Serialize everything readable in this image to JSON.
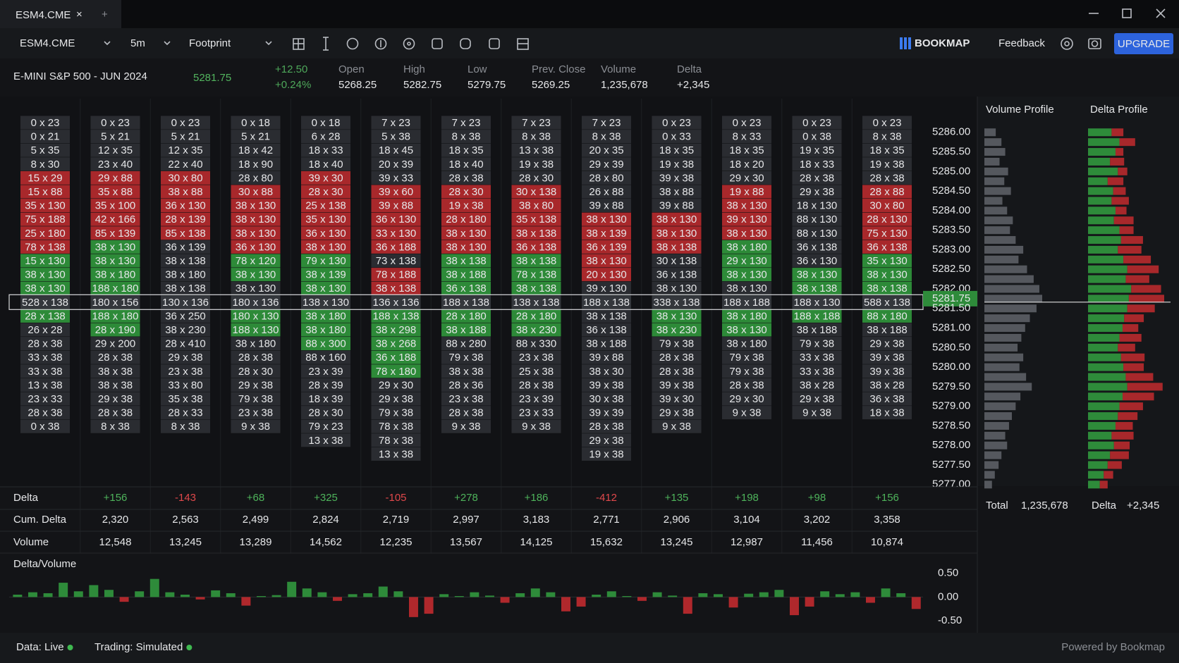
{
  "tab": {
    "title": "ESM4.CME",
    "close": "×",
    "add": "+"
  },
  "toolbar": {
    "symbol": "ESM4.CME",
    "timeframe": "5m",
    "chart_type": "Footprint",
    "brand": "BOOKMAP",
    "feedback": "Feedback",
    "upgrade": "UPGRADE"
  },
  "quote": {
    "name": "E-MINI S&P 500 - JUN 2024",
    "last": "5281.75",
    "change": "+12.50",
    "change_pct": "+0.24%",
    "stats": [
      {
        "label": "Open",
        "value": "5268.25"
      },
      {
        "label": "High",
        "value": "5282.75"
      },
      {
        "label": "Low",
        "value": "5279.75"
      },
      {
        "label": "Prev. Close",
        "value": "5269.25"
      },
      {
        "label": "Volume",
        "value": "1,235,678"
      },
      {
        "label": "Delta",
        "value": "+2,345"
      }
    ]
  },
  "footprint": {
    "current_price": "5281.75",
    "tone_colors": {
      "n": "#2a2c31",
      "r": "#a8282b",
      "g": "#2d8a38",
      "w": "#34373c"
    },
    "columns": [
      {
        "tones": "nnnnrrrrrrgggwgnnnnnnnn",
        "cells": [
          "0 x 23",
          "0 x 21",
          "5 x 35",
          "8 x 30",
          "15 x 29",
          "15 x 88",
          "35 x 130",
          "75 x 188",
          "25 x 180",
          "78 x 138",
          "15 x 130",
          "38 x 130",
          "38 x 130",
          "528 x 138",
          "28 x 138",
          "26 x 28",
          "28 x 38",
          "33 x 38",
          "33 x 38",
          "13 x 38",
          "23 x 33",
          "28 x 38",
          "0 x 38"
        ]
      },
      {
        "tones": "nnnnrrrrrggggwggnnnnnnn",
        "cells": [
          "0 x 23",
          "5 x 21",
          "12 x 35",
          "23 x 40",
          "29 x 88",
          "35 x 88",
          "35 x 100",
          "42 x 166",
          "85 x 139",
          "38 x 130",
          "38 x 130",
          "38 x 180",
          "188 x 180",
          "180 x 156",
          "188 x 180",
          "28 x 190",
          "29 x 200",
          "28 x 38",
          "38 x 38",
          "38 x 38",
          "29 x 38",
          "28 x 38",
          "8 x 38"
        ]
      },
      {
        "tones": "nnnnrrrrrnnnnwnnnnnnnnn",
        "cells": [
          "0 x 23",
          "5 x 21",
          "12 x 35",
          "22 x 40",
          "30 x 80",
          "38 x 88",
          "36 x 130",
          "28 x 139",
          "85 x 138",
          "36 x 139",
          "38 x 138",
          "38 x 180",
          "38 x 138",
          "130 x 136",
          "36 x 250",
          "38 x 230",
          "28 x 410",
          "29 x 38",
          "23 x 38",
          "33 x 80",
          "35 x 38",
          "28 x 33",
          "8 x 38"
        ]
      },
      {
        "tones": "nnnnnrrrrrggnwggnnnnnnn",
        "cells": [
          "0 x 18",
          "5 x 21",
          "18 x 42",
          "18 x 90",
          "28 x 80",
          "30 x 88",
          "38 x 130",
          "38 x 130",
          "38 x 130",
          "36 x 130",
          "78 x 120",
          "38 x 130",
          "38 x 130",
          "180 x 136",
          "180 x 130",
          "188 x 130",
          "38 x 180",
          "28 x 38",
          "28 x 30",
          "29 x 38",
          "79 x 38",
          "23 x 38",
          "9 x 38"
        ]
      },
      {
        "tones": "nnnnrrrrrrgggwgggnnnnnnn",
        "cells": [
          "0 x 18",
          "6 x 28",
          "18 x 33",
          "18 x 40",
          "39 x 30",
          "28 x 30",
          "25 x 138",
          "35 x 130",
          "36 x 130",
          "38 x 130",
          "79 x 130",
          "38 x 139",
          "38 x 130",
          "138 x 130",
          "38 x 180",
          "38 x 180",
          "88 x 300",
          "88 x 160",
          "23 x 39",
          "28 x 39",
          "18 x 39",
          "28 x 30",
          "79 x 23",
          "13 x 38"
        ]
      },
      {
        "tones": "nnnnnrrrrrnrrwgggggnnnnnn",
        "cells": [
          "7 x 23",
          "5 x 38",
          "18 x 45",
          "20 x 39",
          "39 x 33",
          "39 x 60",
          "39 x 88",
          "36 x 130",
          "33 x 130",
          "36 x 188",
          "73 x 138",
          "78 x 188",
          "38 x 138",
          "136 x 136",
          "188 x 138",
          "38 x 298",
          "38 x 268",
          "36 x 188",
          "78 x 180",
          "29 x 30",
          "29 x 38",
          "79 x 38",
          "78 x 38",
          "78 x 38",
          "13 x 38"
        ]
      },
      {
        "tones": "nnnnnrrrrrgggwggnnnnnnn",
        "cells": [
          "7 x 23",
          "8 x 38",
          "18 x 35",
          "18 x 40",
          "28 x 38",
          "28 x 30",
          "19 x 38",
          "28 x 180",
          "38 x 130",
          "38 x 130",
          "38 x 138",
          "38 x 188",
          "36 x 138",
          "188 x 138",
          "28 x 180",
          "38 x 188",
          "88 x 280",
          "79 x 38",
          "38 x 38",
          "28 x 36",
          "23 x 38",
          "28 x 38",
          "9 x 38"
        ]
      },
      {
        "tones": "nnnnnrrrrrgggwggnnnnnnn",
        "cells": [
          "7 x 23",
          "8 x 38",
          "13 x 38",
          "19 x 38",
          "28 x 30",
          "30 x 138",
          "38 x 80",
          "35 x 138",
          "38 x 138",
          "36 x 138",
          "38 x 138",
          "78 x 138",
          "38 x 138",
          "138 x 138",
          "28 x 180",
          "38 x 230",
          "88 x 330",
          "23 x 38",
          "25 x 38",
          "28 x 38",
          "23 x 39",
          "23 x 33",
          "9 x 38"
        ]
      },
      {
        "tones": "nnnnnnnrrrrrnwnnnnnnnnnnn",
        "cells": [
          "7 x 23",
          "8 x 38",
          "20 x 35",
          "29 x 39",
          "28 x 80",
          "26 x 88",
          "39 x 88",
          "38 x 130",
          "38 x 139",
          "36 x 139",
          "38 x 130",
          "20 x 130",
          "39 x 130",
          "188 x 138",
          "38 x 138",
          "36 x 138",
          "38 x 188",
          "39 x 88",
          "38 x 30",
          "39 x 38",
          "30 x 38",
          "39 x 39",
          "28 x 38",
          "29 x 38",
          "19 x 38"
        ]
      },
      {
        "tones": "nnnnnnnrrrnnnwggnnnnnnn",
        "cells": [
          "0 x 23",
          "0 x 33",
          "18 x 35",
          "19 x 38",
          "39 x 38",
          "38 x 88",
          "39 x 88",
          "38 x 130",
          "38 x 130",
          "38 x 138",
          "30 x 138",
          "36 x 138",
          "38 x 130",
          "338 x 138",
          "38 x 130",
          "38 x 230",
          "79 x 38",
          "28 x 38",
          "28 x 38",
          "39 x 38",
          "39 x 30",
          "29 x 38",
          "9 x 38"
        ]
      },
      {
        "tones": "nnnnnrrrrgggnwggnnnnnn",
        "cells": [
          "0 x 23",
          "8 x 33",
          "18 x 35",
          "18 x 20",
          "29 x 30",
          "19 x 88",
          "38 x 130",
          "39 x 130",
          "38 x 130",
          "38 x 180",
          "29 x 130",
          "38 x 130",
          "38 x 130",
          "188 x 188",
          "38 x 180",
          "38 x 130",
          "38 x 180",
          "79 x 38",
          "79 x 38",
          "28 x 38",
          "29 x 30",
          "9 x 38"
        ]
      },
      {
        "tones": "nnnnnnnnnnnggwgnnnnnnn",
        "cells": [
          "0 x 23",
          "0 x 38",
          "19 x 35",
          "18 x 33",
          "28 x 38",
          "29 x 38",
          "18 x 130",
          "88 x 130",
          "88 x 130",
          "36 x 138",
          "36 x 130",
          "38 x 130",
          "38 x 138",
          "188 x 130",
          "188 x 188",
          "38 x 188",
          "79 x 38",
          "33 x 38",
          "33 x 38",
          "38 x 28",
          "29 x 38",
          "9 x 38"
        ]
      },
      {
        "tones": "nnnnnrrrrrgggwgnnnnnnn",
        "cells": [
          "0 x 23",
          "8 x 38",
          "18 x 35",
          "19 x 38",
          "28 x 38",
          "28 x 88",
          "30 x 80",
          "28 x 130",
          "75 x 130",
          "36 x 138",
          "35 x 130",
          "38 x 130",
          "38 x 138",
          "588 x 138",
          "88 x 180",
          "38 x 188",
          "29 x 38",
          "39 x 38",
          "39 x 38",
          "38 x 28",
          "36 x 38",
          "18 x 38"
        ]
      }
    ]
  },
  "summary": {
    "rows": [
      {
        "label": "Delta",
        "values": [
          "+156",
          "-143",
          "+68",
          "+325",
          "-105",
          "+278",
          "+186",
          "-412",
          "+135",
          "+198",
          "+98",
          "+156"
        ]
      },
      {
        "label": "Cum. Delta",
        "values": [
          "2,320",
          "2,563",
          "2,499",
          "2,824",
          "2,719",
          "2,997",
          "3,183",
          "2,771",
          "2,906",
          "3,104",
          "3,202",
          "3,358"
        ]
      },
      {
        "label": "Volume",
        "values": [
          "12,548",
          "13,245",
          "13,289",
          "14,562",
          "12,235",
          "13,567",
          "14,125",
          "15,632",
          "13,245",
          "12,987",
          "11,456",
          "10,874"
        ]
      }
    ]
  },
  "profile_totals": {
    "total_label": "Total",
    "total": "1,235,678",
    "delta_label": "Delta",
    "delta": "+2,345"
  },
  "chart_data": [
    {
      "type": "bar",
      "orientation": "horizontal",
      "title": "Volume Profile",
      "color": "#55585e",
      "current_color": "#2e8b3a",
      "ylim": [
        5276.78,
        5286.32
      ],
      "yticks": [
        {
          "value": 5286,
          "label": "5286.00"
        },
        {
          "value": 5285.5,
          "label": "5285.50"
        },
        {
          "value": 5285,
          "label": "5285.00"
        },
        {
          "value": 5284.5,
          "label": "5284.50"
        },
        {
          "value": 5284,
          "label": "5284.00"
        },
        {
          "value": 5283.5,
          "label": "5283.50"
        },
        {
          "value": 5283,
          "label": "5283.00"
        },
        {
          "value": 5282.5,
          "label": "5282.50"
        },
        {
          "value": 5282,
          "label": "5282.00"
        },
        {
          "value": 5281.75,
          "label": "5281.75"
        },
        {
          "value": 5281.5,
          "label": "5281.50"
        },
        {
          "value": 5281,
          "label": "5281.00"
        },
        {
          "value": 5280.5,
          "label": "5280.50"
        },
        {
          "value": 5280,
          "label": "5280.00"
        },
        {
          "value": 5279.5,
          "label": "5279.50"
        },
        {
          "value": 5279,
          "label": "5279.00"
        },
        {
          "value": 5278.5,
          "label": "5278.50"
        },
        {
          "value": 5278,
          "label": "5278.00"
        },
        {
          "value": 5277.5,
          "label": "5277.50"
        },
        {
          "value": 5277,
          "label": "5277.00"
        }
      ],
      "y": [
        5286,
        5285.75,
        5285.5,
        5285.25,
        5285,
        5284.75,
        5284.5,
        5284.25,
        5284,
        5283.75,
        5283.5,
        5283.25,
        5283,
        5282.75,
        5282.5,
        5282.25,
        5282,
        5281.75,
        5281.5,
        5281.25,
        5281,
        5280.75,
        5280.5,
        5280.25,
        5280,
        5279.75,
        5279.5,
        5279.25,
        5279,
        5278.75,
        5278.5,
        5278.25,
        5278,
        5277.75,
        5277.5,
        5277.25,
        5277
      ],
      "values": [
        12000,
        18000,
        22000,
        16000,
        25000,
        21000,
        28000,
        19000,
        24000,
        30000,
        27000,
        33000,
        41000,
        36000,
        45000,
        52000,
        58000,
        61000,
        55000,
        48000,
        43000,
        39000,
        35000,
        41000,
        37000,
        44000,
        50000,
        38000,
        33000,
        29000,
        26000,
        22000,
        24000,
        18000,
        15000,
        11000,
        8000
      ]
    },
    {
      "type": "stacked-bar",
      "orientation": "horizontal",
      "title": "Delta Profile",
      "y": [
        5286,
        5285.75,
        5285.5,
        5285.25,
        5285,
        5284.75,
        5284.5,
        5284.25,
        5284,
        5283.75,
        5283.5,
        5283.25,
        5283,
        5282.75,
        5282.5,
        5282.25,
        5282,
        5281.75,
        5281.5,
        5281.25,
        5281,
        5280.75,
        5280.5,
        5280.25,
        5280,
        5279.75,
        5279.5,
        5279.25,
        5279,
        5278.75,
        5278.5,
        5278.25,
        5278,
        5277.75,
        5277.5,
        5277.25,
        5277
      ],
      "series": [
        {
          "name": "Buy",
          "color": "#2e8b3a",
          "values": [
            30000,
            40000,
            35000,
            28000,
            38000,
            25000,
            32000,
            30000,
            35000,
            33000,
            40000,
            42000,
            38000,
            45000,
            50000,
            48000,
            55000,
            52000,
            50000,
            46000,
            44000,
            40000,
            38000,
            42000,
            45000,
            48000,
            50000,
            44000,
            40000,
            38000,
            35000,
            30000,
            33000,
            28000,
            25000,
            20000,
            15000
          ]
        },
        {
          "name": "Sell",
          "color": "#a8282b",
          "values": [
            15000,
            20000,
            10000,
            18000,
            12000,
            20000,
            16000,
            22000,
            14000,
            25000,
            18000,
            28000,
            30000,
            35000,
            40000,
            30000,
            38000,
            45000,
            35000,
            25000,
            20000,
            28000,
            22000,
            30000,
            26000,
            35000,
            45000,
            40000,
            30000,
            25000,
            22000,
            28000,
            20000,
            24000,
            18000,
            12000,
            10000
          ]
        }
      ]
    },
    {
      "type": "bar",
      "title": "Delta/Volume",
      "ylim": [
        -0.6,
        0.7
      ],
      "yticks": [
        {
          "value": 0.5,
          "label": "0.50"
        },
        {
          "value": 0,
          "label": "0.00"
        },
        {
          "value": -0.5,
          "label": "-0.50"
        }
      ],
      "colors": {
        "positive": "#2e8b3a",
        "negative": "#b0282c"
      },
      "values": [
        0.05,
        0.1,
        0.08,
        0.3,
        0.12,
        0.25,
        0.15,
        -0.1,
        0.12,
        0.38,
        0.1,
        0.05,
        -0.05,
        0.14,
        0.08,
        -0.18,
        0.02,
        0.04,
        0.32,
        0.18,
        0.1,
        -0.08,
        0.06,
        0.08,
        0.22,
        0.12,
        -0.42,
        -0.35,
        0.06,
        0.02,
        0.1,
        0.03,
        -0.12,
        0.08,
        0.18,
        0.1,
        -0.3,
        -0.2,
        0.05,
        0.12,
        0.02,
        -0.08,
        0.1,
        0.03,
        -0.35,
        0.08,
        0.06,
        -0.22,
        0.07,
        0.1,
        0.15,
        -0.38,
        -0.2,
        0.12,
        0.06,
        0.1,
        -0.12,
        0.18,
        0.08,
        -0.25
      ]
    }
  ],
  "status": {
    "data": "Data: Live",
    "trading": "Trading: Simulated",
    "powered": "Powered by Bookmap"
  }
}
